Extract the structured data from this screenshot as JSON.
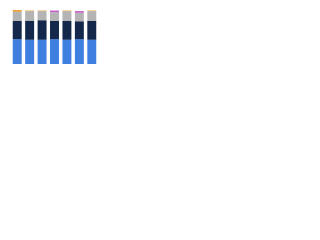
{
  "chart_data": {
    "type": "stacked_bar",
    "series": [
      {
        "color": "#3e7fe0",
        "values": [
          46,
          45,
          45,
          46,
          45,
          46,
          45
        ]
      },
      {
        "color": "#13284a",
        "values": [
          34,
          35,
          36,
          34,
          35,
          33,
          35
        ]
      },
      {
        "color": "#b4b4b4",
        "values": [
          17,
          18,
          17,
          16,
          18,
          16,
          18
        ]
      },
      {
        "color": "#f0a030",
        "values": [
          3,
          1,
          1,
          0,
          1,
          0,
          1
        ]
      },
      {
        "color": "#c260c8",
        "values": [
          0,
          0,
          0,
          3,
          0,
          3,
          0
        ]
      }
    ],
    "ylim": [
      0,
      100
    ]
  }
}
